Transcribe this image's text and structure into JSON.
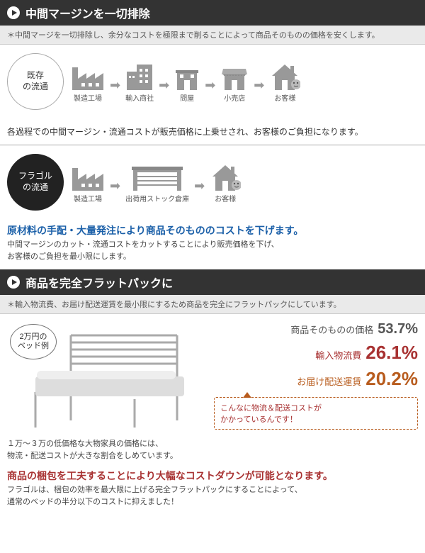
{
  "section1": {
    "title": "中間マージンを一切排除",
    "subnote": "＊中間マージを一切排除し、余分なコストを極限まで削ることによって商品そのものの価格を安くします。",
    "flow1_badge": "既存\nの流通",
    "flow1_nodes": [
      "製造工場",
      "輸入商社",
      "問屋",
      "小売店",
      "お客様"
    ],
    "flow1_caption": "各過程での中間マージン・流通コストが販売価格に上乗せされ、お客様のご負担になります。",
    "flow2_badge": "フラゴル\nの流通",
    "flow2_nodes": [
      "製造工場",
      "出荷用ストック倉庫",
      "お客様"
    ],
    "blue_heading": "原材料の手配・大量発注により商品そのもののコストを下げます。",
    "body": "中間マージンのカット・流通コストをカットすることにより販売価格を下げ、\nお客様のご負担を最小限にします。",
    "icon_colors": {
      "shape": "#999999",
      "arrow": "#999999"
    }
  },
  "section2": {
    "title": "商品を完全フラットパックに",
    "subnote": "＊輸入物流費、お届け配送運賃を最小限にするため商品を完全にフラットパックにしています。",
    "bed_label": "2万円の\nベッド例",
    "costs": [
      {
        "label": "商品そのものの価格",
        "value": "53.7%",
        "cls": "c-prod",
        "big": false
      },
      {
        "label": "輸入物流費",
        "value": "26.1%",
        "cls": "c-import",
        "big": true
      },
      {
        "label": "お届け配送運賃",
        "value": "20.2%",
        "cls": "c-deliver",
        "big": true
      }
    ],
    "callout": "こんなに物流＆配送コストが\nかかっているんです！",
    "price_note": "１万～３万の低価格な大物家具の価格には、\n物流・配送コストが大きな割合をしめています。",
    "red_heading": "商品の梱包を工夫することにより大幅なコストダウンが可能となります。",
    "body": "フラゴルは、梱包の効率を最大限に上げる完全フラットパックにすることによって、\n通常のベッドの半分以下のコストに抑えました！"
  }
}
